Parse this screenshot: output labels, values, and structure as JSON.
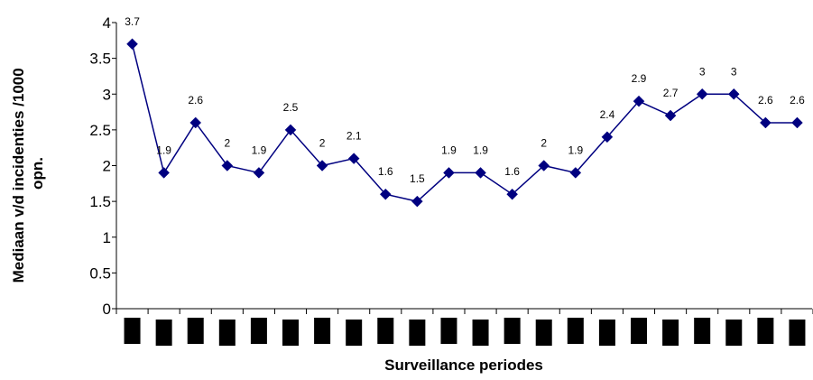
{
  "chart_data": {
    "type": "line",
    "title": "",
    "xlabel": "Surveillance periodes",
    "ylabel": "Mediaan v/d incidenties /1000 opn.",
    "ylabel_lines": [
      "Mediaan v/d incidenties /1000",
      "opn."
    ],
    "ylim": [
      0,
      4
    ],
    "yticks": [
      0,
      0.5,
      1,
      1.5,
      2,
      2.5,
      3,
      3.5,
      4
    ],
    "ytick_labels": [
      "0",
      "0.5",
      "1",
      "1.5",
      "2",
      "2.5",
      "3",
      "3.5",
      "4"
    ],
    "grid": false,
    "legend": "none",
    "category_labels_redacted": true,
    "series": [
      {
        "color": "#000080",
        "marker": "diamond",
        "values": [
          3.7,
          1.9,
          2.6,
          2,
          1.9,
          2.5,
          2,
          2.1,
          1.6,
          1.5,
          1.9,
          1.9,
          1.6,
          2,
          1.9,
          2.4,
          2.9,
          2.7,
          3,
          3,
          2.6,
          2.6
        ],
        "data_labels": [
          "3.7",
          "1.9",
          "2.6",
          "2",
          "1.9",
          "2.5",
          "2",
          "2.1",
          "1.6",
          "1.5",
          "1.9",
          "1.9",
          "1.6",
          "2",
          "1.9",
          "2.4",
          "2.9",
          "2.7",
          "3",
          "3",
          "2.6",
          "2.6"
        ]
      }
    ]
  },
  "colors": {
    "line": "#000080",
    "axis": "#000000",
    "redaction": "#000000"
  }
}
